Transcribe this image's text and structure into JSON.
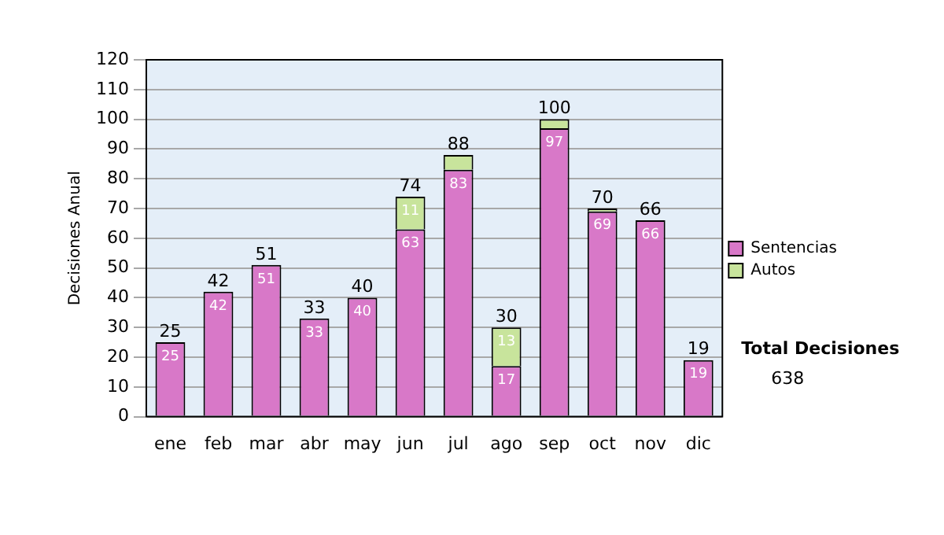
{
  "chart_data": {
    "type": "bar",
    "stacked": true,
    "ylabel": "Decisiones Anual",
    "categories": [
      "ene",
      "feb",
      "mar",
      "abr",
      "may",
      "jun",
      "jul",
      "ago",
      "sep",
      "oct",
      "nov",
      "dic"
    ],
    "series": [
      {
        "name": "Sentencias",
        "color": "#d878c8",
        "values": [
          25,
          42,
          51,
          33,
          40,
          63,
          83,
          17,
          97,
          69,
          66,
          19
        ],
        "value_labels": [
          "25",
          "42",
          "51",
          "33",
          "40",
          "63",
          "83",
          "17",
          "97",
          "69",
          "66",
          "19"
        ]
      },
      {
        "name": "Autos",
        "color": "#c8e49c",
        "values": [
          null,
          null,
          null,
          null,
          null,
          11,
          5,
          13,
          3,
          1,
          null,
          null
        ],
        "value_labels": [
          null,
          null,
          null,
          null,
          null,
          "11",
          null,
          "13",
          null,
          null,
          null,
          null
        ]
      }
    ],
    "totals": [
      "25",
      "42",
      "51",
      "33",
      "40",
      "74",
      "88",
      "30",
      "100",
      "70",
      "66",
      "19"
    ],
    "ylim": [
      0,
      120
    ],
    "yticks": [
      0,
      10,
      20,
      30,
      40,
      50,
      60,
      70,
      80,
      90,
      100,
      110,
      120
    ],
    "grid": "y",
    "legend": "right",
    "annotations": [
      "Total Decisiones",
      "638"
    ]
  }
}
